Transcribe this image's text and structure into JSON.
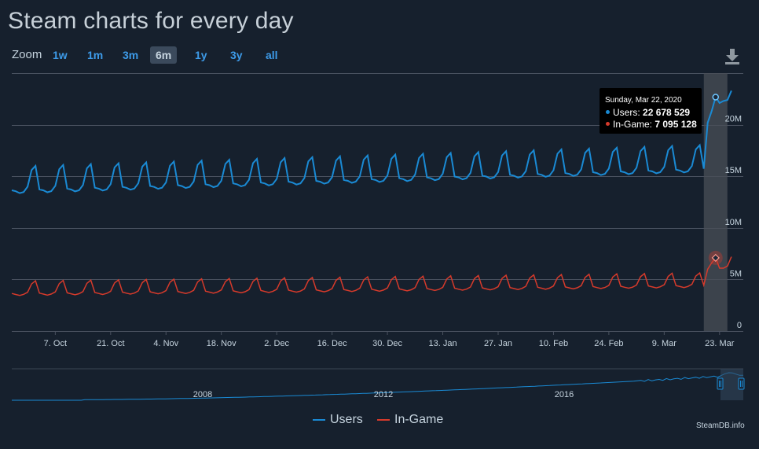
{
  "title": "Steam charts for every day",
  "zoom": {
    "label": "Zoom",
    "buttons": [
      "1w",
      "1m",
      "3m",
      "6m",
      "1y",
      "3y",
      "all"
    ],
    "active": "6m"
  },
  "icons": {
    "download": "download-icon"
  },
  "colors": {
    "users": "#1a8ad4",
    "ingame": "#d63a2b",
    "accent": "#3d9be9",
    "background": "#16202d"
  },
  "tooltip": {
    "date": "Sunday, Mar 22, 2020",
    "users_label": "Users: ",
    "users_value": "22 678 529",
    "ingame_label": "In-Game: ",
    "ingame_value": "7 095 128"
  },
  "legend": [
    {
      "name": "Users",
      "color": "#1a8ad4"
    },
    {
      "name": "In-Game",
      "color": "#d63a2b"
    }
  ],
  "credits": "SteamDB.info",
  "chart_data": {
    "type": "line",
    "title": "Steam charts for every day",
    "x_tick_labels": [
      "7. Oct",
      "21. Oct",
      "4. Nov",
      "18. Nov",
      "2. Dec",
      "16. Dec",
      "30. Dec",
      "13. Jan",
      "27. Jan",
      "10. Feb",
      "24. Feb",
      "9. Mar",
      "23. Mar"
    ],
    "y_tick_labels": [
      "0",
      "5M",
      "10M",
      "15M",
      "20M"
    ],
    "ylim": [
      0,
      25000000
    ],
    "grid": true,
    "legend_position": "bottom-center",
    "x_range": [
      "2019-09-26",
      "2020-03-29"
    ],
    "highlighted_date": "2020-03-22",
    "series": [
      {
        "name": "Users",
        "color": "#1a8ad4",
        "weekly_pattern": [
          14.3,
          14.2,
          14.0,
          14.1,
          14.6,
          16.2,
          16.6
        ],
        "weekly_baseline_start": 14.2,
        "weekly_baseline_end": 16.3,
        "last_week": [
          20.2,
          21.3,
          22.68,
          22.1,
          22.3,
          22.4,
          23.3
        ],
        "unit": "millions"
      },
      {
        "name": "In-Game",
        "color": "#d63a2b",
        "weekly_pattern": [
          3.9,
          3.8,
          3.7,
          3.8,
          4.0,
          4.8,
          5.1
        ],
        "weekly_baseline_start": 3.9,
        "weekly_baseline_end": 4.7,
        "last_week": [
          6.0,
          6.6,
          7.1,
          6.1,
          6.1,
          6.3,
          7.2
        ],
        "unit": "millions"
      }
    ]
  },
  "navigator": {
    "labels": [
      "2008",
      "2012",
      "2016"
    ]
  }
}
